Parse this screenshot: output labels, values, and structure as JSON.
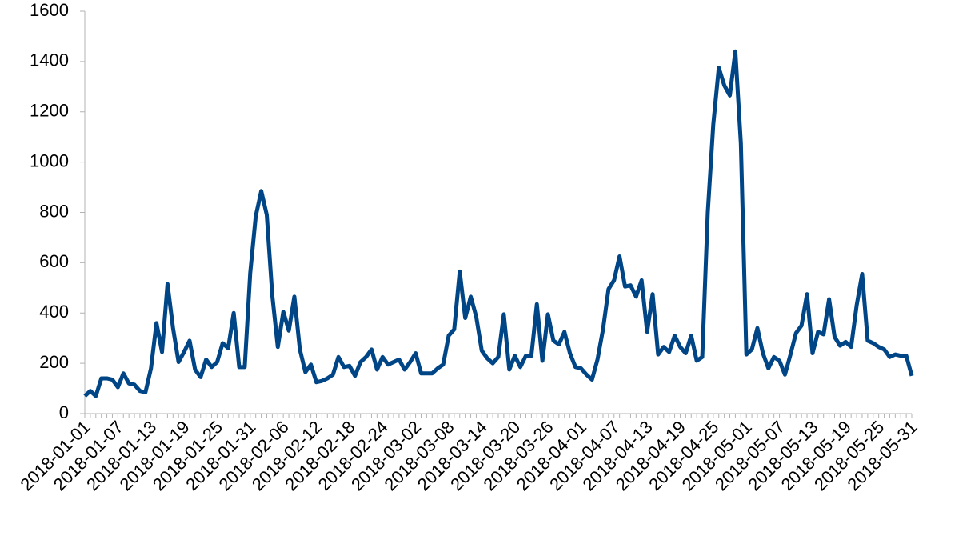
{
  "chart_data": {
    "type": "line",
    "categories": [
      "2018-01-01",
      null,
      null,
      null,
      null,
      null,
      "2018-01-07",
      null,
      null,
      null,
      null,
      null,
      "2018-01-13",
      null,
      null,
      null,
      null,
      null,
      "2018-01-19",
      null,
      null,
      null,
      null,
      null,
      "2018-01-25",
      null,
      null,
      null,
      null,
      null,
      "2018-01-31",
      null,
      null,
      null,
      null,
      null,
      "2018-02-06",
      null,
      null,
      null,
      null,
      null,
      "2018-02-12",
      null,
      null,
      null,
      null,
      null,
      "2018-02-18",
      null,
      null,
      null,
      null,
      null,
      "2018-02-24",
      null,
      null,
      null,
      null,
      null,
      "2018-03-02",
      null,
      null,
      null,
      null,
      null,
      "2018-03-08",
      null,
      null,
      null,
      null,
      null,
      "2018-03-14",
      null,
      null,
      null,
      null,
      null,
      "2018-03-20",
      null,
      null,
      null,
      null,
      null,
      "2018-03-26",
      null,
      null,
      null,
      null,
      null,
      "2018-04-01",
      null,
      null,
      null,
      null,
      null,
      "2018-04-07",
      null,
      null,
      null,
      null,
      null,
      "2018-04-13",
      null,
      null,
      null,
      null,
      null,
      "2018-04-19",
      null,
      null,
      null,
      null,
      null,
      "2018-04-25",
      null,
      null,
      null,
      null,
      null,
      "2018-05-01",
      null,
      null,
      null,
      null,
      null,
      "2018-05-07",
      null,
      null,
      null,
      null,
      null,
      "2018-05-13",
      null,
      null,
      null,
      null,
      null,
      "2018-05-19",
      null,
      null,
      null,
      null,
      null,
      "2018-05-25",
      null,
      null,
      null,
      null,
      null,
      "2018-05-31"
    ],
    "series": [
      {
        "color": "#004586",
        "values": [
          70,
          90,
          70,
          140,
          140,
          135,
          105,
          160,
          120,
          115,
          90,
          85,
          180,
          360,
          245,
          515,
          340,
          205,
          245,
          290,
          175,
          145,
          215,
          185,
          205,
          280,
          260,
          400,
          185,
          185,
          560,
          785,
          885,
          790,
          470,
          265,
          405,
          330,
          465,
          255,
          165,
          195,
          125,
          130,
          140,
          155,
          225,
          185,
          190,
          150,
          205,
          225,
          255,
          175,
          225,
          195,
          205,
          215,
          175,
          205,
          240,
          160,
          160,
          160,
          180,
          195,
          310,
          335,
          565,
          380,
          465,
          385,
          250,
          220,
          200,
          225,
          395,
          175,
          230,
          185,
          230,
          230,
          435,
          210,
          395,
          290,
          275,
          325,
          240,
          185,
          180,
          155,
          135,
          215,
          335,
          495,
          530,
          625,
          505,
          510,
          465,
          530,
          325,
          475,
          235,
          265,
          245,
          310,
          265,
          240,
          310,
          210,
          225,
          800,
          1150,
          1375,
          1305,
          1265,
          1440,
          1075,
          235,
          255,
          340,
          240,
          180,
          225,
          210,
          155,
          235,
          320,
          350,
          475,
          240,
          325,
          315,
          455,
          305,
          270,
          285,
          265,
          430,
          555,
          290,
          280,
          265,
          255,
          225,
          235,
          230,
          230,
          150
        ]
      }
    ],
    "ylim": [
      0,
      1600
    ],
    "yticks": [
      0,
      200,
      400,
      600,
      800,
      1000,
      1200,
      1400,
      1600
    ],
    "grid": false
  }
}
